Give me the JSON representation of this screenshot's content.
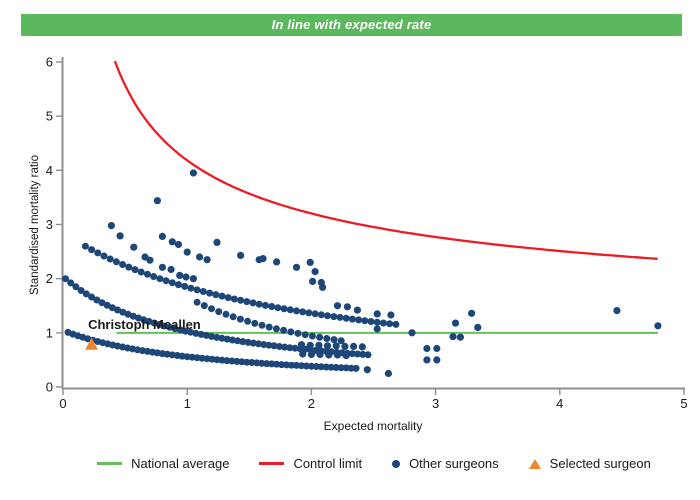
{
  "banner": {
    "text": "In line with expected rate",
    "bg": "#5cb85c",
    "fg": "#ffffff"
  },
  "chart_data": {
    "type": "scatter",
    "title": "",
    "xlabel": "Expected mortality",
    "ylabel": "Standardised mortality ratio",
    "xlim": [
      0,
      5
    ],
    "ylim": [
      0,
      6
    ],
    "xticks": [
      0,
      1,
      2,
      3,
      4,
      5
    ],
    "yticks": [
      0,
      1,
      2,
      3,
      4,
      5,
      6
    ],
    "grid": false,
    "axis_color": "#8f8f8f",
    "national_average": {
      "label": "National average",
      "y": 1,
      "x_start": 0.43,
      "x_end": 4.79,
      "color": "#65bf5c"
    },
    "control_limit": {
      "label": "Control limit",
      "color": "#ed1c24",
      "formula": "smr = 0.837 + 3.346 / sqrt(expected)",
      "a": 3.346,
      "b": 0.837,
      "x_start": 0.42,
      "x_end": 4.78
    },
    "selected_surgeon": {
      "label": "Christoph Mcallen",
      "x": 0.23,
      "y": 0.79,
      "color": "#f0862c",
      "marker": "triangle"
    },
    "other_surgeons": {
      "label": "Other surgeons",
      "color": "#1d4679",
      "marker": "circle",
      "band_formula": "smr = c / (expected + d), plotted from x_start to x_end at given step",
      "bands": [
        {
          "c": 1.21,
          "d": 1.16,
          "x_start": 0.04,
          "x_end": 2.36,
          "step": 0.04
        },
        {
          "c": 2.06,
          "d": 1.01,
          "x_start": 0.02,
          "x_end": 2.48,
          "step": 0.042
        },
        {
          "c": 2.19,
          "d": 0.32,
          "x_start": 1.08,
          "x_end": 2.26,
          "step": 0.058
        },
        {
          "c": 5.2,
          "d": 1.82,
          "x_start": 0.18,
          "x_end": 2.68,
          "step": 0.05
        }
      ],
      "points": [
        [
          0.39,
          2.98
        ],
        [
          0.46,
          2.79
        ],
        [
          0.57,
          2.58
        ],
        [
          0.66,
          2.4
        ],
        [
          0.7,
          2.34
        ],
        [
          0.76,
          3.44
        ],
        [
          0.8,
          2.78
        ],
        [
          0.8,
          2.21
        ],
        [
          0.87,
          2.17
        ],
        [
          0.88,
          2.68
        ],
        [
          0.93,
          2.63
        ],
        [
          0.94,
          2.06
        ],
        [
          0.99,
          2.03
        ],
        [
          1.05,
          2.0
        ],
        [
          1.0,
          2.49
        ],
        [
          1.05,
          3.95
        ],
        [
          1.1,
          2.4
        ],
        [
          1.16,
          2.35
        ],
        [
          1.24,
          2.67
        ],
        [
          1.43,
          2.43
        ],
        [
          1.58,
          2.35
        ],
        [
          1.61,
          2.37
        ],
        [
          1.72,
          2.31
        ],
        [
          1.88,
          2.21
        ],
        [
          2.03,
          2.13
        ],
        [
          1.99,
          2.3
        ],
        [
          2.01,
          1.95
        ],
        [
          2.08,
          1.93
        ],
        [
          2.09,
          1.84
        ],
        [
          2.21,
          1.5
        ],
        [
          2.29,
          1.48
        ],
        [
          2.37,
          1.42
        ],
        [
          2.53,
          1.35
        ],
        [
          2.64,
          1.33
        ],
        [
          2.53,
          1.07
        ],
        [
          2.81,
          1.0
        ],
        [
          3.16,
          1.18
        ],
        [
          3.14,
          0.93
        ],
        [
          3.2,
          0.92
        ],
        [
          3.29,
          1.36
        ],
        [
          3.34,
          1.1
        ],
        [
          1.92,
          0.78
        ],
        [
          1.99,
          0.77
        ],
        [
          2.06,
          0.77
        ],
        [
          2.13,
          0.76
        ],
        [
          2.2,
          0.76
        ],
        [
          2.27,
          0.75
        ],
        [
          2.34,
          0.75
        ],
        [
          2.41,
          0.74
        ],
        [
          2.93,
          0.71
        ],
        [
          3.01,
          0.71
        ],
        [
          1.93,
          0.61
        ],
        [
          2.0,
          0.6
        ],
        [
          2.07,
          0.6
        ],
        [
          2.14,
          0.59
        ],
        [
          2.21,
          0.59
        ],
        [
          2.28,
          0.58
        ],
        [
          2.93,
          0.5
        ],
        [
          3.01,
          0.5
        ],
        [
          2.45,
          0.32
        ],
        [
          2.62,
          0.25
        ],
        [
          4.46,
          1.41
        ],
        [
          4.79,
          1.13
        ]
      ]
    }
  },
  "legend": {
    "items": [
      {
        "label": "National average",
        "marker": "line",
        "color": "#65bf5c"
      },
      {
        "label": "Control limit",
        "marker": "line",
        "color": "#ed1c24"
      },
      {
        "label": "Other surgeons",
        "marker": "circle",
        "color": "#1d4679"
      },
      {
        "label": "Selected surgeon",
        "marker": "triangle",
        "color": "#f0862c"
      }
    ]
  }
}
